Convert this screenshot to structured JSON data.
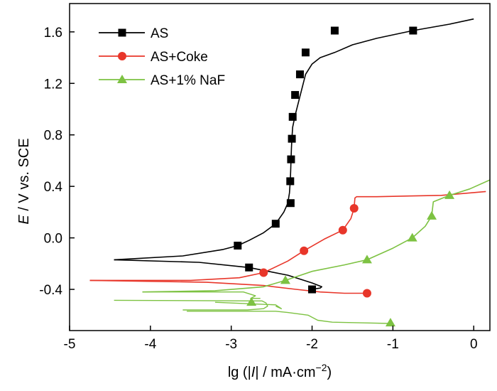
{
  "chart_data": {
    "type": "line",
    "title": "",
    "xlabel": {
      "pre": "lg (|",
      "ital": "I",
      "post": "| / mA·cm",
      "sup": "−2",
      "close": ")"
    },
    "ylabel": {
      "ital": "E",
      "rest": " / V vs. SCE"
    },
    "xlim": [
      -5,
      0.2
    ],
    "ylim": [
      -0.72,
      1.82
    ],
    "x_ticks": [
      -5,
      -4,
      -3,
      -2,
      -1,
      0
    ],
    "y_ticks": [
      -0.4,
      0.0,
      0.4,
      0.8,
      1.2,
      1.6
    ],
    "x_tick_labels": [
      "-5",
      "-4",
      "-3",
      "-2",
      "-1",
      "0"
    ],
    "y_tick_labels": [
      "-0.4",
      "0.0",
      "0.4",
      "0.8",
      "1.2",
      "1.6"
    ],
    "legend_position": "top-left",
    "series": [
      {
        "name": "AS",
        "color": "#000000",
        "marker": "square",
        "x": [
          -4.45,
          -3.6,
          -3.1,
          -2.92,
          -2.78,
          -2.6,
          -2.45,
          -2.35,
          -2.3,
          -2.28,
          -2.27,
          -2.265,
          -2.26,
          -2.255,
          -2.25,
          -2.24,
          -2.21,
          -2.15,
          -2.08,
          -2.0,
          -1.9,
          -1.72,
          -1.5,
          -1.2,
          -0.75,
          -0.3,
          0.0
        ],
        "y": [
          -0.17,
          -0.14,
          -0.09,
          -0.06,
          -0.02,
          0.04,
          0.11,
          0.2,
          0.27,
          0.35,
          0.44,
          0.52,
          0.61,
          0.7,
          0.77,
          0.86,
          0.95,
          1.1,
          1.27,
          1.35,
          1.4,
          1.44,
          1.5,
          1.55,
          1.61,
          1.66,
          1.7
        ],
        "branch_x": [
          -4.45,
          -3.4,
          -2.78,
          -2.3,
          -2.0,
          -1.88,
          -1.9,
          -2.0
        ],
        "branch_y": [
          -0.17,
          -0.19,
          -0.23,
          -0.29,
          -0.35,
          -0.38,
          -0.39,
          -0.4
        ],
        "markers_x": [
          -2.92,
          -2.45,
          -2.265,
          -2.27,
          -2.26,
          -2.25,
          -2.24,
          -2.21,
          -2.15,
          -2.08,
          -1.72,
          -0.75,
          -2.78,
          -2.0
        ],
        "markers_y": [
          -0.06,
          0.11,
          0.27,
          0.44,
          0.61,
          0.77,
          0.94,
          1.11,
          1.27,
          1.44,
          1.61,
          1.61,
          -0.23,
          -0.4
        ]
      },
      {
        "name": "AS+Coke",
        "color": "#e8362a",
        "marker": "circle",
        "x": [
          -4.75,
          -3.5,
          -2.9,
          -2.6,
          -2.3,
          -2.1,
          -1.85,
          -1.62,
          -1.52,
          -1.48,
          -1.47,
          -1.45,
          -1.2,
          -0.8,
          -0.4,
          0.15
        ],
        "y": [
          -0.33,
          -0.33,
          -0.31,
          -0.27,
          -0.18,
          -0.1,
          -0.01,
          0.06,
          0.15,
          0.23,
          0.31,
          0.32,
          0.32,
          0.325,
          0.33,
          0.36
        ],
        "branch_x": [
          -4.75,
          -3.3,
          -2.6,
          -2.2,
          -1.9,
          -1.6,
          -1.32
        ],
        "branch_y": [
          -0.33,
          -0.345,
          -0.37,
          -0.4,
          -0.42,
          -0.43,
          -0.43
        ],
        "markers_x": [
          -2.6,
          -2.1,
          -1.62,
          -1.48,
          -1.32
        ],
        "markers_y": [
          -0.27,
          -0.1,
          0.06,
          0.23,
          -0.43
        ]
      },
      {
        "name": "AS+1% NaF",
        "color": "#7dc242",
        "marker": "triangle",
        "x": [
          -4.1,
          -3.2,
          -2.6,
          -2.33,
          -2.0,
          -1.6,
          -1.32,
          -1.0,
          -0.76,
          -0.6,
          -0.52,
          -0.5,
          -0.3,
          -0.05,
          0.2
        ],
        "y": [
          -0.42,
          -0.41,
          -0.38,
          -0.33,
          -0.26,
          -0.21,
          -0.17,
          -0.08,
          0.0,
          0.09,
          0.17,
          0.28,
          0.33,
          0.38,
          0.45
        ],
        "markers_x": [
          -2.33,
          -1.32,
          -0.76,
          -0.52,
          -0.3,
          -2.75,
          -1.03
        ],
        "markers_y": [
          -0.33,
          -0.17,
          0.0,
          0.17,
          0.33,
          -0.5,
          -0.66
        ]
      }
    ]
  }
}
